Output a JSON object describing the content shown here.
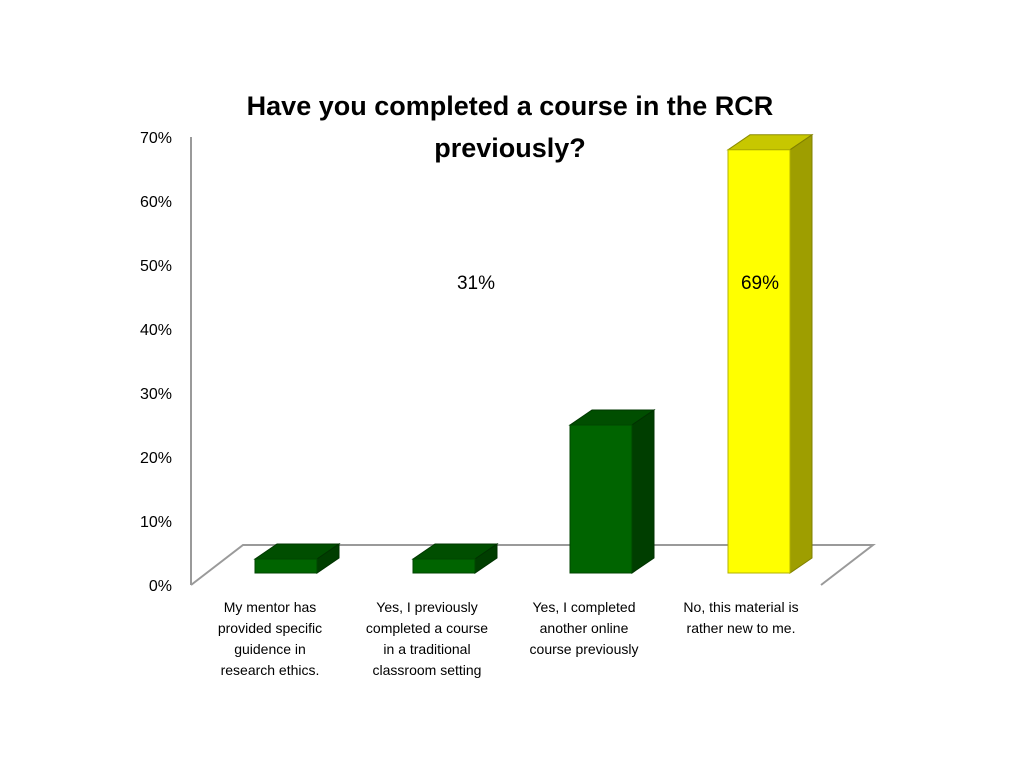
{
  "chart_data": {
    "type": "bar",
    "title": "Have you completed a course in the RCR previously?",
    "categories": [
      "My mentor has provided specific guidence in research ethics.",
      "Yes, I previously completed a course in a traditional classroom setting",
      "Yes, I completed another online course previously",
      "No, this material is rather new to me."
    ],
    "values": [
      2,
      4,
      25,
      68
    ],
    "bar_colors": [
      "#006400",
      "#006400",
      "#006400",
      "#FFFF00"
    ],
    "y_ticks": [
      "0%",
      "10%",
      "20%",
      "30%",
      "40%",
      "50%",
      "60%",
      "70%"
    ],
    "ylim": [
      0,
      70
    ],
    "annotations": [
      "31%",
      "69%"
    ],
    "grid": false,
    "legend": "none",
    "style": "3d-column"
  }
}
